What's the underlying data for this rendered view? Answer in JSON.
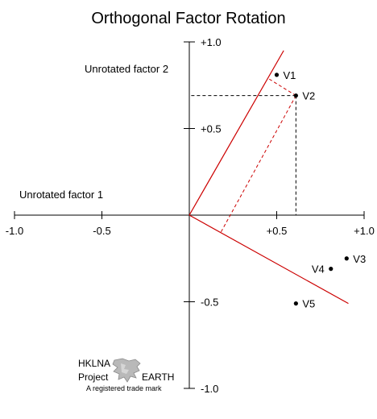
{
  "title": "Orthogonal Factor Rotation",
  "axis_labels": {
    "factor1": "Unrotated factor 1",
    "factor2": "Unrotated factor 2"
  },
  "x_ticks": [
    {
      "value": -1.0,
      "label": "-1.0"
    },
    {
      "value": -0.5,
      "label": "-0.5"
    },
    {
      "value": 0.5,
      "label": "+0.5"
    },
    {
      "value": 1.0,
      "label": "+1.0"
    }
  ],
  "y_ticks": [
    {
      "value": 1.0,
      "label": "+1.0"
    },
    {
      "value": 0.5,
      "label": "+0.5"
    },
    {
      "value": -0.5,
      "label": "-0.5"
    },
    {
      "value": -1.0,
      "label": "-1.0"
    }
  ],
  "chart_data": {
    "type": "scatter",
    "xlim": [
      -1.0,
      1.0
    ],
    "ylim": [
      -1.0,
      1.0
    ],
    "points": [
      {
        "name": "V1",
        "x": 0.5,
        "y": 0.81
      },
      {
        "name": "V2",
        "x": 0.61,
        "y": 0.69
      },
      {
        "name": "V3",
        "x": 0.9,
        "y": -0.25
      },
      {
        "name": "V4",
        "x": 0.81,
        "y": -0.31
      },
      {
        "name": "V5",
        "x": 0.61,
        "y": -0.51
      }
    ],
    "rotated_axes": [
      {
        "from": [
          0,
          0
        ],
        "to": [
          0.54,
          0.95
        ]
      },
      {
        "from": [
          0,
          0
        ],
        "to": [
          0.91,
          -0.51
        ]
      }
    ],
    "projection_lines": [
      {
        "from": [
          0.61,
          0.69
        ],
        "to": [
          0.61,
          0.0
        ]
      },
      {
        "from": [
          0.61,
          0.69
        ],
        "to": [
          0.0,
          0.69
        ]
      }
    ],
    "rotated_projection_lines": [
      {
        "from": [
          0.61,
          0.69
        ],
        "to": [
          0.45,
          0.79
        ]
      },
      {
        "from": [
          0.61,
          0.69
        ],
        "to": [
          0.18,
          -0.1
        ]
      }
    ]
  },
  "colors": {
    "axis": "#000000",
    "rotated": "#cc0000",
    "projection": "#000000"
  },
  "logo": {
    "line1": "HKLNA",
    "line2_left": "Project",
    "line2_right": "EARTH",
    "tagline": "A registered trade mark",
    "icon": "earth-globe-icon"
  }
}
